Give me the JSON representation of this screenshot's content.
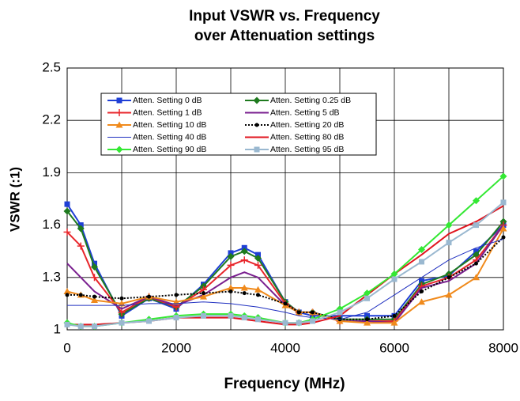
{
  "chart_data": {
    "type": "line",
    "title": [
      "Input VSWR vs. Frequency",
      "over Attenuation settings"
    ],
    "x_label": "Frequency (MHz)",
    "y_label": "VSWR (:1)",
    "x": [
      0,
      250,
      500,
      1000,
      1500,
      2000,
      2500,
      3000,
      3250,
      3500,
      4000,
      4250,
      4500,
      5000,
      5500,
      6000,
      6500,
      7000,
      7500,
      8000
    ],
    "xlim": [
      0,
      8000
    ],
    "xticks": [
      0,
      2000,
      4000,
      6000,
      8000
    ],
    "x_minor_grid": [
      1000,
      3000,
      5000,
      7000
    ],
    "ylim": [
      1,
      2.5
    ],
    "yticks": [
      1,
      1.3,
      1.6,
      1.9,
      2.2,
      2.5
    ],
    "grid": true,
    "series": [
      {
        "name": "Atten. Setting 0 dB",
        "color": "#1f3fd6",
        "marker": "square",
        "values": [
          1.72,
          1.6,
          1.38,
          1.08,
          1.18,
          1.12,
          1.26,
          1.44,
          1.47,
          1.43,
          1.16,
          1.1,
          1.08,
          1.08,
          1.08,
          1.08,
          1.28,
          1.31,
          1.45,
          1.6
        ]
      },
      {
        "name": "Atten. Setting 0.25 dB",
        "color": "#1e7a1e",
        "marker": "diamond",
        "values": [
          1.68,
          1.58,
          1.36,
          1.09,
          1.18,
          1.13,
          1.25,
          1.42,
          1.45,
          1.41,
          1.16,
          1.1,
          1.1,
          1.06,
          1.06,
          1.06,
          1.26,
          1.32,
          1.43,
          1.62
        ]
      },
      {
        "name": "Atten. Setting 1 dB",
        "color": "#e8262b",
        "marker": "plus",
        "values": [
          1.56,
          1.48,
          1.3,
          1.1,
          1.19,
          1.13,
          1.23,
          1.37,
          1.4,
          1.37,
          1.15,
          1.1,
          1.1,
          1.05,
          1.05,
          1.05,
          1.25,
          1.3,
          1.4,
          1.6
        ]
      },
      {
        "name": "Atten. Setting 5 dB",
        "color": "#7a1f8f",
        "marker": "none",
        "values": [
          1.38,
          1.3,
          1.22,
          1.12,
          1.19,
          1.14,
          1.2,
          1.3,
          1.33,
          1.3,
          1.14,
          1.1,
          1.1,
          1.05,
          1.05,
          1.04,
          1.24,
          1.28,
          1.38,
          1.6
        ]
      },
      {
        "name": "Atten. Setting 10 dB",
        "color": "#f08a1c",
        "marker": "triangle",
        "values": [
          1.22,
          1.2,
          1.17,
          1.15,
          1.19,
          1.16,
          1.19,
          1.24,
          1.24,
          1.23,
          1.14,
          1.1,
          1.1,
          1.05,
          1.04,
          1.04,
          1.16,
          1.2,
          1.3,
          1.58
        ]
      },
      {
        "name": "Atten. Setting 20 dB",
        "color": "#000000",
        "marker": "circle",
        "dash": true,
        "values": [
          1.2,
          1.2,
          1.19,
          1.18,
          1.19,
          1.2,
          1.21,
          1.22,
          1.21,
          1.2,
          1.15,
          1.1,
          1.1,
          1.06,
          1.06,
          1.08,
          1.22,
          1.3,
          1.38,
          1.53
        ]
      },
      {
        "name": "Atten. Setting 40 dB",
        "color": "#2030c0",
        "marker": "none",
        "thin": true,
        "values": [
          1.14,
          1.14,
          1.14,
          1.14,
          1.15,
          1.15,
          1.16,
          1.15,
          1.14,
          1.13,
          1.1,
          1.08,
          1.07,
          1.06,
          1.1,
          1.2,
          1.3,
          1.4,
          1.47,
          1.52
        ]
      },
      {
        "name": "Atten. Setting 80 dB",
        "color": "#e0141e",
        "marker": "none",
        "values": [
          1.03,
          1.03,
          1.03,
          1.04,
          1.05,
          1.07,
          1.07,
          1.07,
          1.06,
          1.05,
          1.03,
          1.03,
          1.04,
          1.08,
          1.2,
          1.32,
          1.43,
          1.55,
          1.62,
          1.71
        ]
      },
      {
        "name": "Atten. Setting 90 dB",
        "color": "#33e833",
        "marker": "diamond",
        "values": [
          1.04,
          1.02,
          1.02,
          1.04,
          1.06,
          1.08,
          1.09,
          1.09,
          1.08,
          1.07,
          1.04,
          1.04,
          1.06,
          1.12,
          1.21,
          1.32,
          1.46,
          1.6,
          1.74,
          1.88
        ]
      },
      {
        "name": "Atten. Setting 95 dB",
        "color": "#9ab8d0",
        "marker": "square",
        "values": [
          1.03,
          1.02,
          1.02,
          1.04,
          1.05,
          1.07,
          1.08,
          1.08,
          1.07,
          1.06,
          1.04,
          1.04,
          1.05,
          1.1,
          1.18,
          1.29,
          1.39,
          1.5,
          1.6,
          1.73
        ]
      }
    ]
  }
}
